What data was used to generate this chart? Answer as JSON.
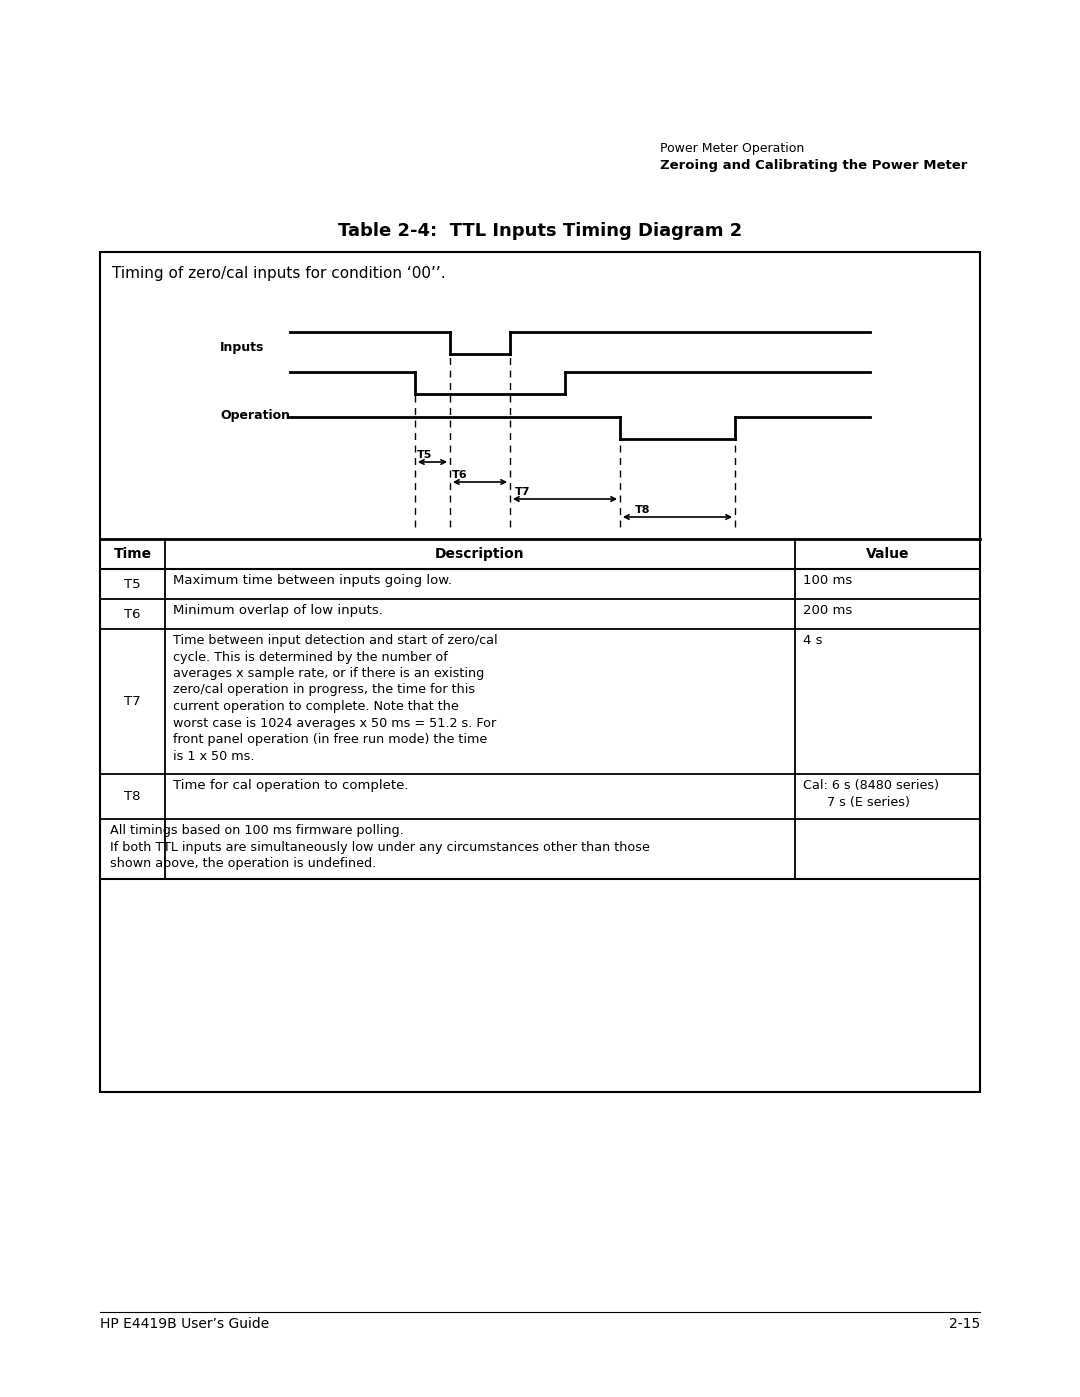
{
  "page_title_line1": "Power Meter Operation",
  "page_title_line2": "Zeroing and Calibrating the Power Meter",
  "table_title": "Table 2-4:  TTL Inputs Timing Diagram 2",
  "diagram_caption": "Timing of zero/cal inputs for condition ‘00’’.",
  "footer_note_line1": "All timings based on 100 ms firmware polling.",
  "footer_note_line2": "If both TTL inputs are simultaneously low under any circumstances other than those",
  "footer_note_line3": "shown above, the operation is undefined.",
  "footer_left": "HP E4419B User’s Guide",
  "footer_right": "2-15",
  "col_header": [
    "Time",
    "Description",
    "Value"
  ],
  "rows": [
    {
      "time": "T5",
      "desc": "Maximum time between inputs going low.",
      "val": "100 ms"
    },
    {
      "time": "T6",
      "desc": "Minimum overlap of low inputs.",
      "val": "200 ms"
    },
    {
      "time": "T7",
      "desc": "Time between input detection and start of zero/cal\ncycle. This is determined by the number of\naverages x sample rate, or if there is an existing\nzero/cal operation in progress, the time for this\ncurrent operation to complete. Note that the\nworst case is 1024 averages x 50 ms = 51.2 s. For\nfront panel operation (in free run mode) the time\nis 1 x 50 ms.",
      "val": "4 s"
    },
    {
      "time": "T8",
      "desc": "Time for cal operation to complete.",
      "val": "Cal: 6 s (8480 series)\n7 s (E series)"
    }
  ]
}
